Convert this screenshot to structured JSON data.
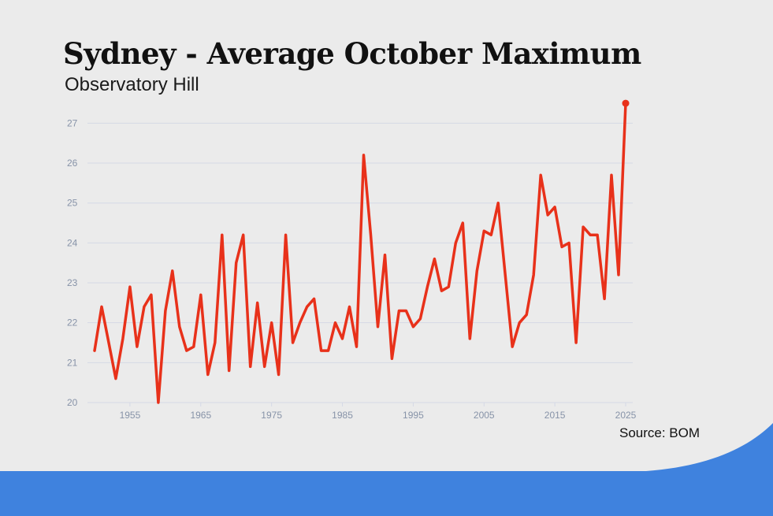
{
  "colors": {
    "background": "#ebebeb",
    "line": "#e8311a",
    "grid": "#d5d9e6",
    "tick": "#8793a8",
    "footer": "#3f82de"
  },
  "title": "Sydney - Average October Maximum",
  "subtitle": "Observatory Hill",
  "source": "Source: BOM",
  "chart_data": {
    "type": "line",
    "title": "Sydney - Average October Maximum",
    "subtitle": "Observatory Hill",
    "xlabel": "",
    "ylabel": "",
    "xlim": [
      1949,
      2026
    ],
    "ylim": [
      20,
      27.6
    ],
    "xticks": [
      1955,
      1965,
      1975,
      1985,
      1995,
      2005,
      2015,
      2025
    ],
    "yticks": [
      20,
      21,
      22,
      23,
      24,
      25,
      26,
      27
    ],
    "grid": true,
    "series": [
      {
        "name": "Average October Maximum",
        "x": [
          1950,
          1951,
          1952,
          1953,
          1954,
          1955,
          1956,
          1957,
          1958,
          1959,
          1960,
          1961,
          1962,
          1963,
          1964,
          1965,
          1966,
          1967,
          1968,
          1969,
          1970,
          1971,
          1972,
          1973,
          1974,
          1975,
          1976,
          1977,
          1978,
          1979,
          1980,
          1981,
          1982,
          1983,
          1984,
          1985,
          1986,
          1987,
          1988,
          1989,
          1990,
          1991,
          1992,
          1993,
          1994,
          1995,
          1996,
          1997,
          1998,
          1999,
          2000,
          2001,
          2002,
          2003,
          2004,
          2005,
          2006,
          2007,
          2008,
          2009,
          2010,
          2011,
          2012,
          2013,
          2014,
          2015,
          2016,
          2017,
          2018,
          2019,
          2020,
          2021,
          2022,
          2023,
          2024,
          2025
        ],
        "values": [
          21.3,
          22.4,
          21.5,
          20.6,
          21.6,
          22.9,
          21.4,
          22.4,
          22.7,
          20.0,
          22.3,
          23.3,
          21.9,
          21.3,
          21.4,
          22.7,
          20.7,
          21.5,
          24.2,
          20.8,
          23.5,
          24.2,
          20.9,
          22.5,
          20.9,
          22.0,
          20.7,
          24.2,
          21.5,
          22.0,
          22.4,
          22.6,
          21.3,
          21.3,
          22.0,
          21.6,
          22.4,
          21.4,
          26.2,
          24.2,
          21.9,
          23.7,
          21.1,
          22.3,
          22.3,
          21.9,
          22.1,
          22.9,
          23.6,
          22.8,
          22.9,
          24.0,
          24.5,
          21.6,
          23.3,
          24.3,
          24.2,
          25.0,
          23.2,
          21.4,
          22.0,
          22.2,
          23.2,
          25.7,
          24.7,
          24.9,
          23.9,
          24.0,
          21.5,
          24.4,
          24.2,
          24.2,
          22.6,
          25.7,
          23.2,
          27.5
        ]
      }
    ]
  }
}
